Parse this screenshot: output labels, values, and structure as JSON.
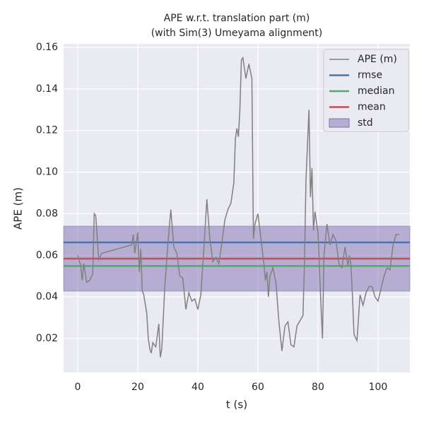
{
  "chart_data": {
    "type": "line",
    "title": "APE w.r.t. translation part (m)",
    "subtitle": "(with Sim(3) Umeyama alignment)",
    "x_label": "t (s)",
    "y_label": "APE (m)",
    "xlim": [
      -4.7,
      110.6
    ],
    "ylim": [
      0.0037,
      0.1617
    ],
    "xticks": [
      0,
      20,
      40,
      60,
      80,
      100
    ],
    "yticks": [
      0.02,
      0.04,
      0.06,
      0.08,
      {
        "value": 0.1,
        "label": "0.10"
      },
      0.12,
      0.14,
      0.16
    ],
    "grid": true,
    "legend": "upper right",
    "x": [
      0,
      1,
      1.5,
      2,
      3,
      4,
      5,
      5.5,
      6,
      7,
      8,
      18,
      18.5,
      19,
      20,
      20.5,
      21,
      21.5,
      22,
      23,
      23.5,
      24,
      24.5,
      25,
      26,
      27,
      27.5,
      28,
      29,
      30,
      31,
      32,
      33,
      34,
      35,
      36,
      37,
      38,
      39,
      40,
      41,
      42,
      43,
      44,
      45,
      46,
      47,
      48,
      49,
      50,
      51,
      52,
      52.5,
      53,
      53.5,
      54,
      54.5,
      55,
      55.5,
      56,
      57,
      58,
      58.5,
      59,
      60,
      61,
      62,
      62.5,
      63,
      63.5,
      64,
      65,
      66,
      67,
      68,
      69,
      70,
      71,
      72,
      73,
      75,
      75.5,
      76,
      77,
      77.5,
      78,
      78.5,
      79,
      80,
      81,
      81.5,
      82,
      83,
      84,
      85,
      86,
      87,
      88,
      89,
      90,
      90.5,
      91,
      91.5,
      92,
      93,
      94,
      95,
      96,
      97,
      98,
      99,
      100,
      101,
      102,
      103,
      104,
      105,
      106,
      107
    ],
    "series": [
      {
        "name": "APE (m)",
        "color": "#808080",
        "values": [
          0.06,
          0.055,
          0.048,
          0.056,
          0.047,
          0.048,
          0.051,
          0.08,
          0.079,
          0.058,
          0.061,
          0.065,
          0.07,
          0.061,
          0.071,
          0.052,
          0.063,
          0.043,
          0.041,
          0.032,
          0.02,
          0.015,
          0.013,
          0.018,
          0.016,
          0.027,
          0.011,
          0.015,
          0.045,
          0.065,
          0.082,
          0.064,
          0.061,
          0.05,
          0.049,
          0.034,
          0.042,
          0.038,
          0.039,
          0.034,
          0.041,
          0.063,
          0.087,
          0.068,
          0.057,
          0.059,
          0.056,
          0.066,
          0.077,
          0.082,
          0.085,
          0.095,
          0.116,
          0.121,
          0.117,
          0.13,
          0.154,
          0.155,
          0.15,
          0.145,
          0.152,
          0.145,
          0.068,
          0.075,
          0.08,
          0.068,
          0.056,
          0.048,
          0.052,
          0.04,
          0.05,
          0.054,
          0.047,
          0.028,
          0.014,
          0.026,
          0.028,
          0.017,
          0.016,
          0.026,
          0.031,
          0.056,
          0.096,
          0.13,
          0.088,
          0.102,
          0.072,
          0.081,
          0.071,
          0.036,
          0.02,
          0.06,
          0.075,
          0.065,
          0.07,
          0.067,
          0.056,
          0.054,
          0.064,
          0.055,
          0.06,
          0.055,
          0.04,
          0.022,
          0.019,
          0.041,
          0.036,
          0.042,
          0.045,
          0.045,
          0.04,
          0.038,
          0.044,
          0.05,
          0.054,
          0.053,
          0.065,
          0.07,
          0.07
        ]
      },
      {
        "name": "rmse",
        "color": "#4c72b0",
        "value": 0.0662
      },
      {
        "name": "median",
        "color": "#55a868",
        "value": 0.0549
      },
      {
        "name": "mean",
        "color": "#c44e52",
        "value": 0.0584
      },
      {
        "name": "std",
        "color": "#8172b2",
        "value": 0.0156
      }
    ]
  }
}
